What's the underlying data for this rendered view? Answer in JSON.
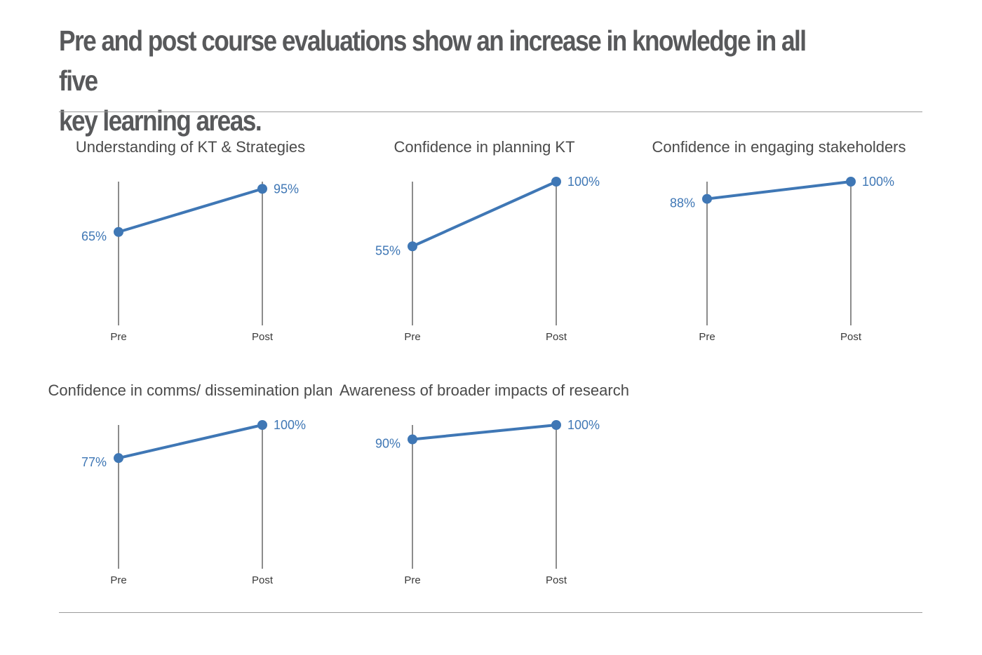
{
  "page": {
    "title_line_1": "Pre and post course evaluations show an increase in knowledge in all five",
    "title_line_2": "key learning areas."
  },
  "colors": {
    "series": "#3f77b5",
    "axis": "#8c8c8c",
    "rule": "#9b9b9b",
    "title": "#58595b"
  },
  "chart_data": [
    {
      "type": "line",
      "title": "Understanding of KT & Strategies",
      "categories": [
        "Pre",
        "Post"
      ],
      "values": [
        65,
        95
      ],
      "labels": [
        "65%",
        "95%"
      ],
      "ylim": [
        0,
        100
      ],
      "grid": false
    },
    {
      "type": "line",
      "title": "Confidence in planning KT",
      "categories": [
        "Pre",
        "Post"
      ],
      "values": [
        55,
        100
      ],
      "labels": [
        "55%",
        "100%"
      ],
      "ylim": [
        0,
        100
      ],
      "grid": false
    },
    {
      "type": "line",
      "title": "Confidence in engaging stakeholders",
      "categories": [
        "Pre",
        "Post"
      ],
      "values": [
        88,
        100
      ],
      "labels": [
        "88%",
        "100%"
      ],
      "ylim": [
        0,
        100
      ],
      "grid": false
    },
    {
      "type": "line",
      "title": "Confidence in comms/ dissemination plan",
      "categories": [
        "Pre",
        "Post"
      ],
      "values": [
        77,
        100
      ],
      "labels": [
        "77%",
        "100%"
      ],
      "ylim": [
        0,
        100
      ],
      "grid": false
    },
    {
      "type": "line",
      "title": "Awareness of broader impacts of research",
      "categories": [
        "Pre",
        "Post"
      ],
      "values": [
        90,
        100
      ],
      "labels": [
        "90%",
        "100%"
      ],
      "ylim": [
        0,
        100
      ],
      "grid": false
    }
  ]
}
